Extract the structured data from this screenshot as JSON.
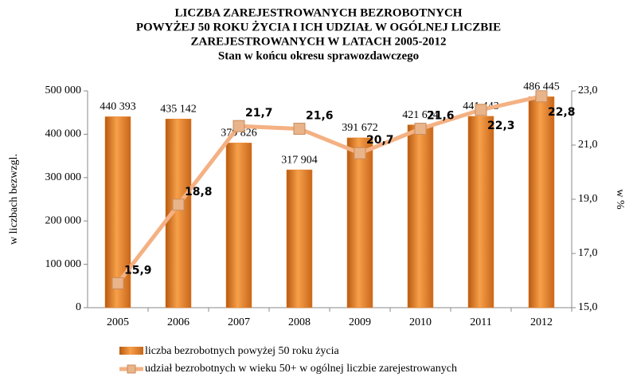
{
  "chart_data": {
    "type": "combo",
    "title": [
      "LICZBA  ZAREJESTROWANYCH  BEZROBOTNYCH",
      "POWYŻEJ 50 ROKU ŻYCIA I ICH UDZIAŁ W OGÓLNEJ LICZBIE",
      "ZAREJESTROWANYCH W LATACH 2005-2012"
    ],
    "subtitle": "Stan w końcu okresu sprawozdawczego",
    "categories": [
      "2005",
      "2006",
      "2007",
      "2008",
      "2009",
      "2010",
      "2011",
      "2012"
    ],
    "series": [
      {
        "name": "liczba bezrobotnych powyżej 50 roku życia",
        "type": "bar",
        "color": "#e67e22",
        "values": [
          440393,
          435142,
          379826,
          317904,
          391672,
          421674,
          441443,
          486445
        ],
        "value_labels": [
          "440 393",
          "435 142",
          "379 826",
          "317 904",
          "391 672",
          "421 674",
          "441 443",
          "486 445"
        ]
      },
      {
        "name": "udział bezrobotnych w wieku 50+ w ogólnej liczbie zarejestrowanych",
        "type": "line",
        "axis": "y2",
        "color": "#f4b183",
        "values": [
          15.9,
          18.8,
          21.7,
          21.6,
          20.7,
          21.6,
          22.3,
          22.8
        ],
        "value_labels": [
          "15,9",
          "18,8",
          "21,7",
          "21,6",
          "20,7",
          "21,6",
          "22,3",
          "22,8"
        ]
      }
    ],
    "ylabel": "w liczbach bezwzgl.",
    "y2label": "w %",
    "ylim": [
      0,
      500000
    ],
    "yticks": [
      0,
      {
        "value": 100000,
        "label": "100 000"
      },
      {
        "value": 200000,
        "label": "200 000"
      },
      {
        "value": 300000,
        "label": "300 000"
      },
      {
        "value": 400000,
        "label": "400 000"
      },
      {
        "value": 500000,
        "label": "500 000"
      }
    ],
    "y2lim": [
      15,
      23
    ],
    "y2ticks": [
      {
        "value": 15,
        "label": "15,0"
      },
      {
        "value": 17,
        "label": "17,0"
      },
      {
        "value": 19,
        "label": "19,0"
      },
      {
        "value": 21,
        "label": "21,0"
      },
      {
        "value": 23,
        "label": "23,0"
      }
    ]
  }
}
